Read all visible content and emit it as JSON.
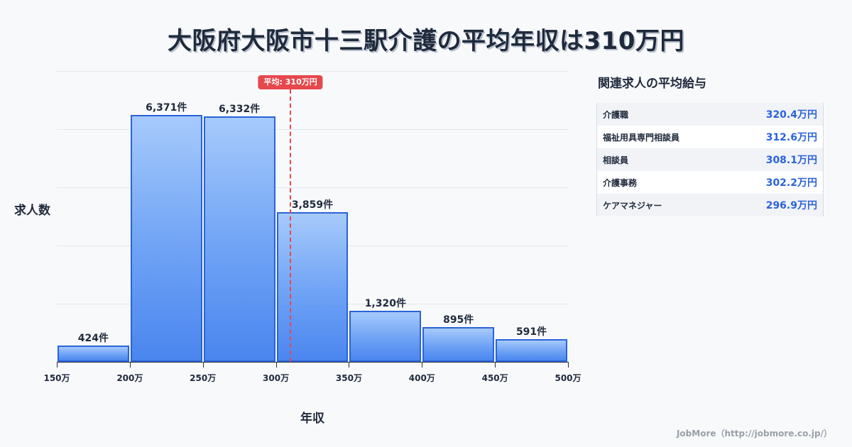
{
  "title": "大阪府大阪市十三駅介護の平均年収は310万円",
  "chart_data": {
    "type": "bar",
    "title": "大阪府大阪市十三駅介護の平均年収は310万円",
    "xlabel": "年収",
    "ylabel": "求人数",
    "categories": [
      "150万-200万",
      "200万-250万",
      "250万-300万",
      "300万-350万",
      "350万-400万",
      "400万-450万",
      "450万-500万"
    ],
    "values": [
      424,
      6371,
      6332,
      3859,
      1320,
      895,
      591
    ],
    "value_labels": [
      "424件",
      "6,371件",
      "6,332件",
      "3,859件",
      "1,320件",
      "895件",
      "591件"
    ],
    "x_ticks": [
      "150万",
      "200万",
      "250万",
      "300万",
      "350万",
      "400万",
      "450万",
      "500万"
    ],
    "xlim": [
      150,
      500
    ],
    "ylim": [
      0,
      7500
    ],
    "grid": true,
    "average": {
      "value": 310,
      "label": "平均: 310万円",
      "color": "#e5484d"
    },
    "bar_color": "#4a86ef"
  },
  "sidebar": {
    "title": "関連求人の平均給与",
    "rows": [
      {
        "name": "介護職",
        "value": "320.4万円"
      },
      {
        "name": "福祉用具専門相談員",
        "value": "312.6万円"
      },
      {
        "name": "相談員",
        "value": "308.1万円"
      },
      {
        "name": "介護事務",
        "value": "302.2万円"
      },
      {
        "name": "ケアマネジャー",
        "value": "296.9万円"
      }
    ]
  },
  "footer": "JobMore（http://jobmore.co.jp/）"
}
